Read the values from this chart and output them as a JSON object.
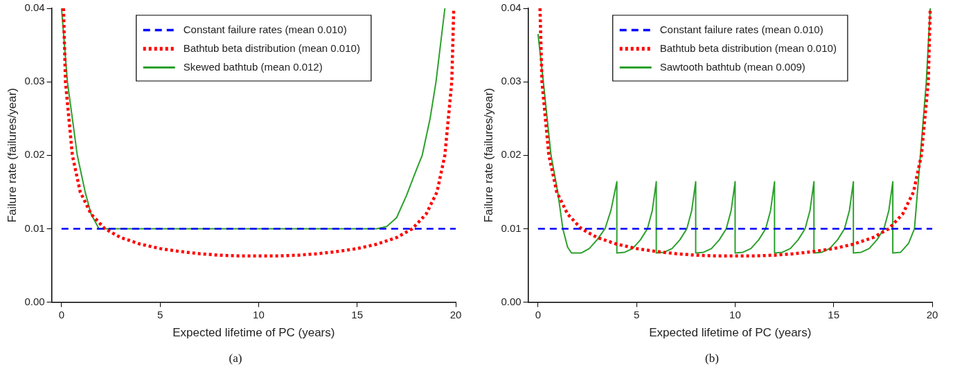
{
  "chart_data": [
    {
      "type": "line",
      "xlabel": "Expected lifetime of PC (years)",
      "ylabel": "Failure rate (failures/year)",
      "annotations": [
        "(a)"
      ],
      "xlim": [
        -0.5,
        20
      ],
      "xticks": [
        0,
        5,
        10,
        15,
        20
      ],
      "ylim": [
        0,
        0.04
      ],
      "yticks": [
        {
          "value": 0,
          "label": "0.00"
        },
        0.01,
        0.02,
        0.03,
        0.04
      ],
      "grid": false,
      "legend": "top",
      "marker": "none",
      "series": [
        {
          "name": "Constant failure rates (mean 0.010)",
          "color": "#0000ff",
          "line_style": "dashed",
          "x": [
            0,
            20
          ],
          "values": [
            0.01,
            0.01
          ]
        },
        {
          "name": "Bathtub beta distribution (mean 0.010)",
          "color": "#ff0000",
          "line_style": "dotted",
          "x": [
            0.1,
            0.2,
            0.55,
            0.95,
            1.5,
            2.2,
            3,
            4,
            5,
            6,
            7,
            8,
            9,
            10,
            11,
            12,
            13,
            14,
            15,
            16,
            17,
            17.8,
            18.5,
            19.05,
            19.45,
            19.8,
            19.9
          ],
          "values": [
            0.04,
            0.03,
            0.02,
            0.015,
            0.012,
            0.01,
            0.0088,
            0.0079,
            0.0073,
            0.0069,
            0.0066,
            0.0064,
            0.0063,
            0.0063,
            0.0063,
            0.0064,
            0.0066,
            0.0069,
            0.0073,
            0.0079,
            0.0088,
            0.01,
            0.012,
            0.015,
            0.02,
            0.03,
            0.04
          ]
        },
        {
          "name": "Skewed bathtub (mean 0.012)",
          "color": "#2ca02c",
          "line_style": "solid",
          "x": [
            0,
            0.3,
            0.8,
            1.2,
            1.5,
            1.9,
            16,
            16.5,
            17,
            17.5,
            18,
            18.3,
            18.7,
            19,
            19.45
          ],
          "values": [
            0.04,
            0.03,
            0.02,
            0.015,
            0.012,
            0.01,
            0.01,
            0.0103,
            0.0115,
            0.0145,
            0.018,
            0.02,
            0.025,
            0.03,
            0.04
          ]
        }
      ]
    },
    {
      "type": "line",
      "xlabel": "Expected lifetime of PC (years)",
      "ylabel": "Failure rate (failures/year)",
      "annotations": [
        "(b)"
      ],
      "xlim": [
        -0.5,
        20
      ],
      "xticks": [
        0,
        5,
        10,
        15,
        20
      ],
      "ylim": [
        0,
        0.04
      ],
      "yticks": [
        {
          "value": 0,
          "label": "0.00"
        },
        0.01,
        0.02,
        0.03,
        0.04
      ],
      "grid": false,
      "legend": "top",
      "marker": "none",
      "series": [
        {
          "name": "Constant failure rates (mean 0.010)",
          "color": "#0000ff",
          "line_style": "dashed",
          "x": [
            0,
            20
          ],
          "values": [
            0.01,
            0.01
          ]
        },
        {
          "name": "Bathtub beta distribution (mean 0.010)",
          "color": "#ff0000",
          "line_style": "dotted",
          "x": [
            0.1,
            0.2,
            0.55,
            0.95,
            1.5,
            2.2,
            3,
            4,
            5,
            6,
            7,
            8,
            9,
            10,
            11,
            12,
            13,
            14,
            15,
            16,
            17,
            17.8,
            18.5,
            19.05,
            19.45,
            19.8,
            19.9
          ],
          "values": [
            0.04,
            0.03,
            0.02,
            0.015,
            0.012,
            0.01,
            0.0088,
            0.0079,
            0.0073,
            0.0069,
            0.0066,
            0.0064,
            0.0063,
            0.0063,
            0.0063,
            0.0064,
            0.0066,
            0.0069,
            0.0073,
            0.0079,
            0.0088,
            0.01,
            0.012,
            0.015,
            0.02,
            0.03,
            0.04
          ]
        },
        {
          "name": "Sawtooth bathtub (mean 0.009)",
          "color": "#2ca02c",
          "line_style": "solid",
          "x": [
            0,
            0.27,
            0.66,
            1.0,
            1.26,
            1.5,
            1.7,
            2.2,
            2.6,
            3.0,
            3.4,
            3.7,
            4,
            4,
            4.4,
            4.8,
            5.2,
            5.55,
            5.8,
            6,
            6,
            6.4,
            6.8,
            7.2,
            7.55,
            7.8,
            8,
            8,
            8.4,
            8.8,
            9.2,
            9.55,
            9.8,
            10,
            10,
            10.4,
            10.8,
            11.2,
            11.55,
            11.8,
            12,
            12,
            12.4,
            12.8,
            13.2,
            13.55,
            13.8,
            14,
            14,
            14.4,
            14.8,
            15.2,
            15.55,
            15.8,
            16,
            16,
            16.4,
            16.8,
            17.2,
            17.55,
            17.8,
            18,
            18,
            18.4,
            18.8,
            19.1,
            19.4,
            19.7,
            19.9
          ],
          "values": [
            0.0365,
            0.03,
            0.02,
            0.015,
            0.01,
            0.0075,
            0.0067,
            0.0067,
            0.0073,
            0.0085,
            0.01,
            0.0125,
            0.0164,
            0.0067,
            0.0068,
            0.0073,
            0.0085,
            0.01,
            0.0125,
            0.0164,
            0.0067,
            0.0068,
            0.0073,
            0.0085,
            0.01,
            0.0125,
            0.0164,
            0.0067,
            0.0068,
            0.0073,
            0.0085,
            0.01,
            0.0125,
            0.0164,
            0.0067,
            0.0068,
            0.0073,
            0.0085,
            0.01,
            0.0125,
            0.0164,
            0.0067,
            0.0068,
            0.0073,
            0.0085,
            0.01,
            0.0125,
            0.0164,
            0.0067,
            0.0068,
            0.0073,
            0.0085,
            0.01,
            0.0125,
            0.0164,
            0.0067,
            0.0068,
            0.0073,
            0.0085,
            0.01,
            0.0125,
            0.0164,
            0.0067,
            0.0068,
            0.008,
            0.01,
            0.02,
            0.03,
            0.04
          ]
        }
      ]
    }
  ]
}
